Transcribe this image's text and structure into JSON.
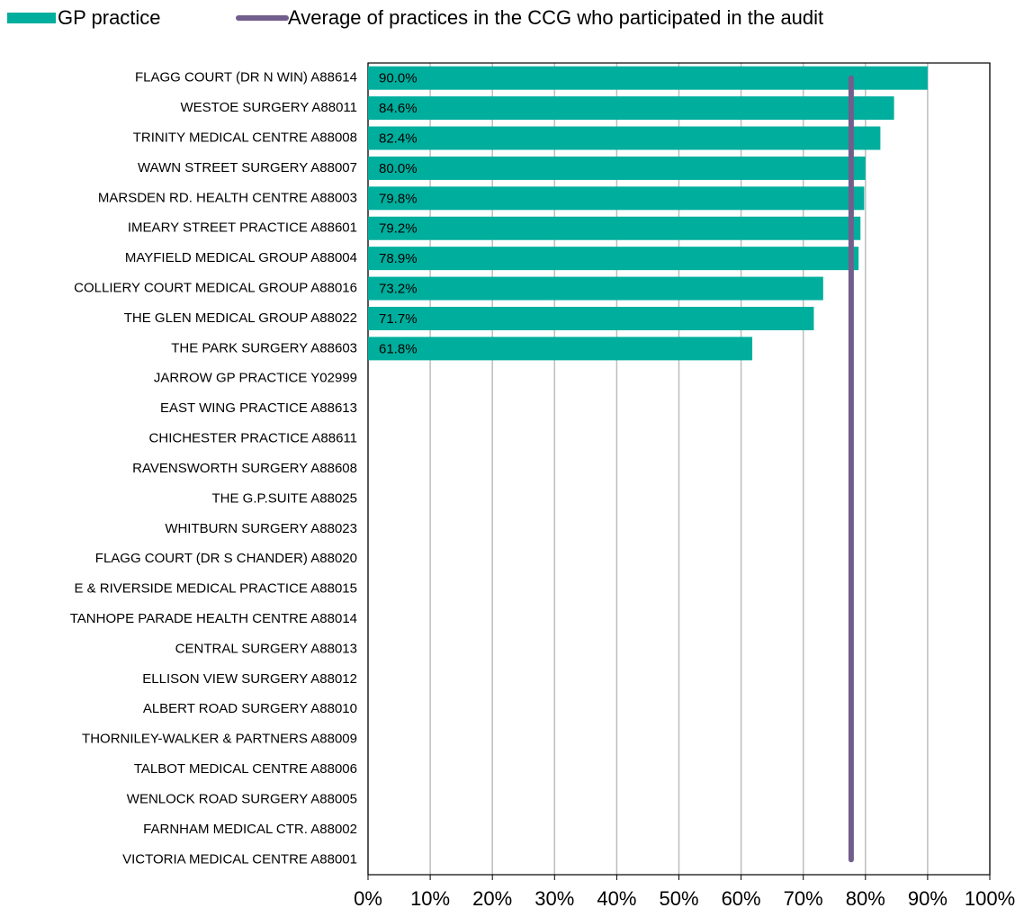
{
  "chart_data": {
    "type": "bar",
    "orientation": "horizontal",
    "categories": [
      "FLAGG COURT (DR N WIN) A88614",
      "WESTOE SURGERY A88011",
      "TRINITY MEDICAL CENTRE A88008",
      "WAWN STREET SURGERY A88007",
      "MARSDEN RD. HEALTH CENTRE A88003",
      "IMEARY STREET PRACTICE A88601",
      "MAYFIELD MEDICAL GROUP A88004",
      "COLLIERY COURT MEDICAL GROUP A88016",
      "THE GLEN MEDICAL GROUP A88022",
      "THE PARK SURGERY A88603",
      "JARROW GP PRACTICE Y02999",
      "EAST WING PRACTICE A88613",
      "CHICHESTER PRACTICE A88611",
      "RAVENSWORTH SURGERY A88608",
      "THE G.P.SUITE A88025",
      "WHITBURN SURGERY A88023",
      "FLAGG COURT (DR S CHANDER) A88020",
      "E & RIVERSIDE MEDICAL PRACTICE A88015",
      "TANHOPE PARADE HEALTH CENTRE A88014",
      "CENTRAL SURGERY A88013",
      "ELLISON VIEW SURGERY A88012",
      "ALBERT ROAD SURGERY A88010",
      "THORNILEY-WALKER & PARTNERS A88009",
      "TALBOT MEDICAL CENTRE A88006",
      "WENLOCK ROAD SURGERY A88005",
      "FARNHAM MEDICAL CTR. A88002",
      "VICTORIA MEDICAL CENTRE A88001"
    ],
    "series": [
      {
        "name": "GP practice",
        "color": "#00ae9d",
        "values": [
          90.0,
          84.6,
          82.4,
          80.0,
          79.8,
          79.2,
          78.9,
          73.2,
          71.7,
          61.8,
          null,
          null,
          null,
          null,
          null,
          null,
          null,
          null,
          null,
          null,
          null,
          null,
          null,
          null,
          null,
          null,
          null
        ],
        "value_labels": [
          "90.0%",
          "84.6%",
          "82.4%",
          "80.0%",
          "79.8%",
          "79.2%",
          "78.9%",
          "73.2%",
          "71.7%",
          "61.8%",
          null,
          null,
          null,
          null,
          null,
          null,
          null,
          null,
          null,
          null,
          null,
          null,
          null,
          null,
          null,
          null,
          null
        ]
      }
    ],
    "average": {
      "name": "Average of practices in the CCG who participated in the audit",
      "color": "#725e8c",
      "value": 77.7
    },
    "xlim": [
      0,
      100
    ],
    "xticks": [
      {
        "value": 0,
        "label": "0%"
      },
      {
        "value": 10,
        "label": "10%"
      },
      {
        "value": 20,
        "label": "20%"
      },
      {
        "value": 30,
        "label": "30%"
      },
      {
        "value": 40,
        "label": "40%"
      },
      {
        "value": 50,
        "label": "50%"
      },
      {
        "value": 60,
        "label": "60%"
      },
      {
        "value": 70,
        "label": "70%"
      },
      {
        "value": 80,
        "label": "80%"
      },
      {
        "value": 90,
        "label": "90%"
      },
      {
        "value": 100,
        "label": "100%"
      }
    ],
    "grid": true,
    "legend": "top"
  }
}
